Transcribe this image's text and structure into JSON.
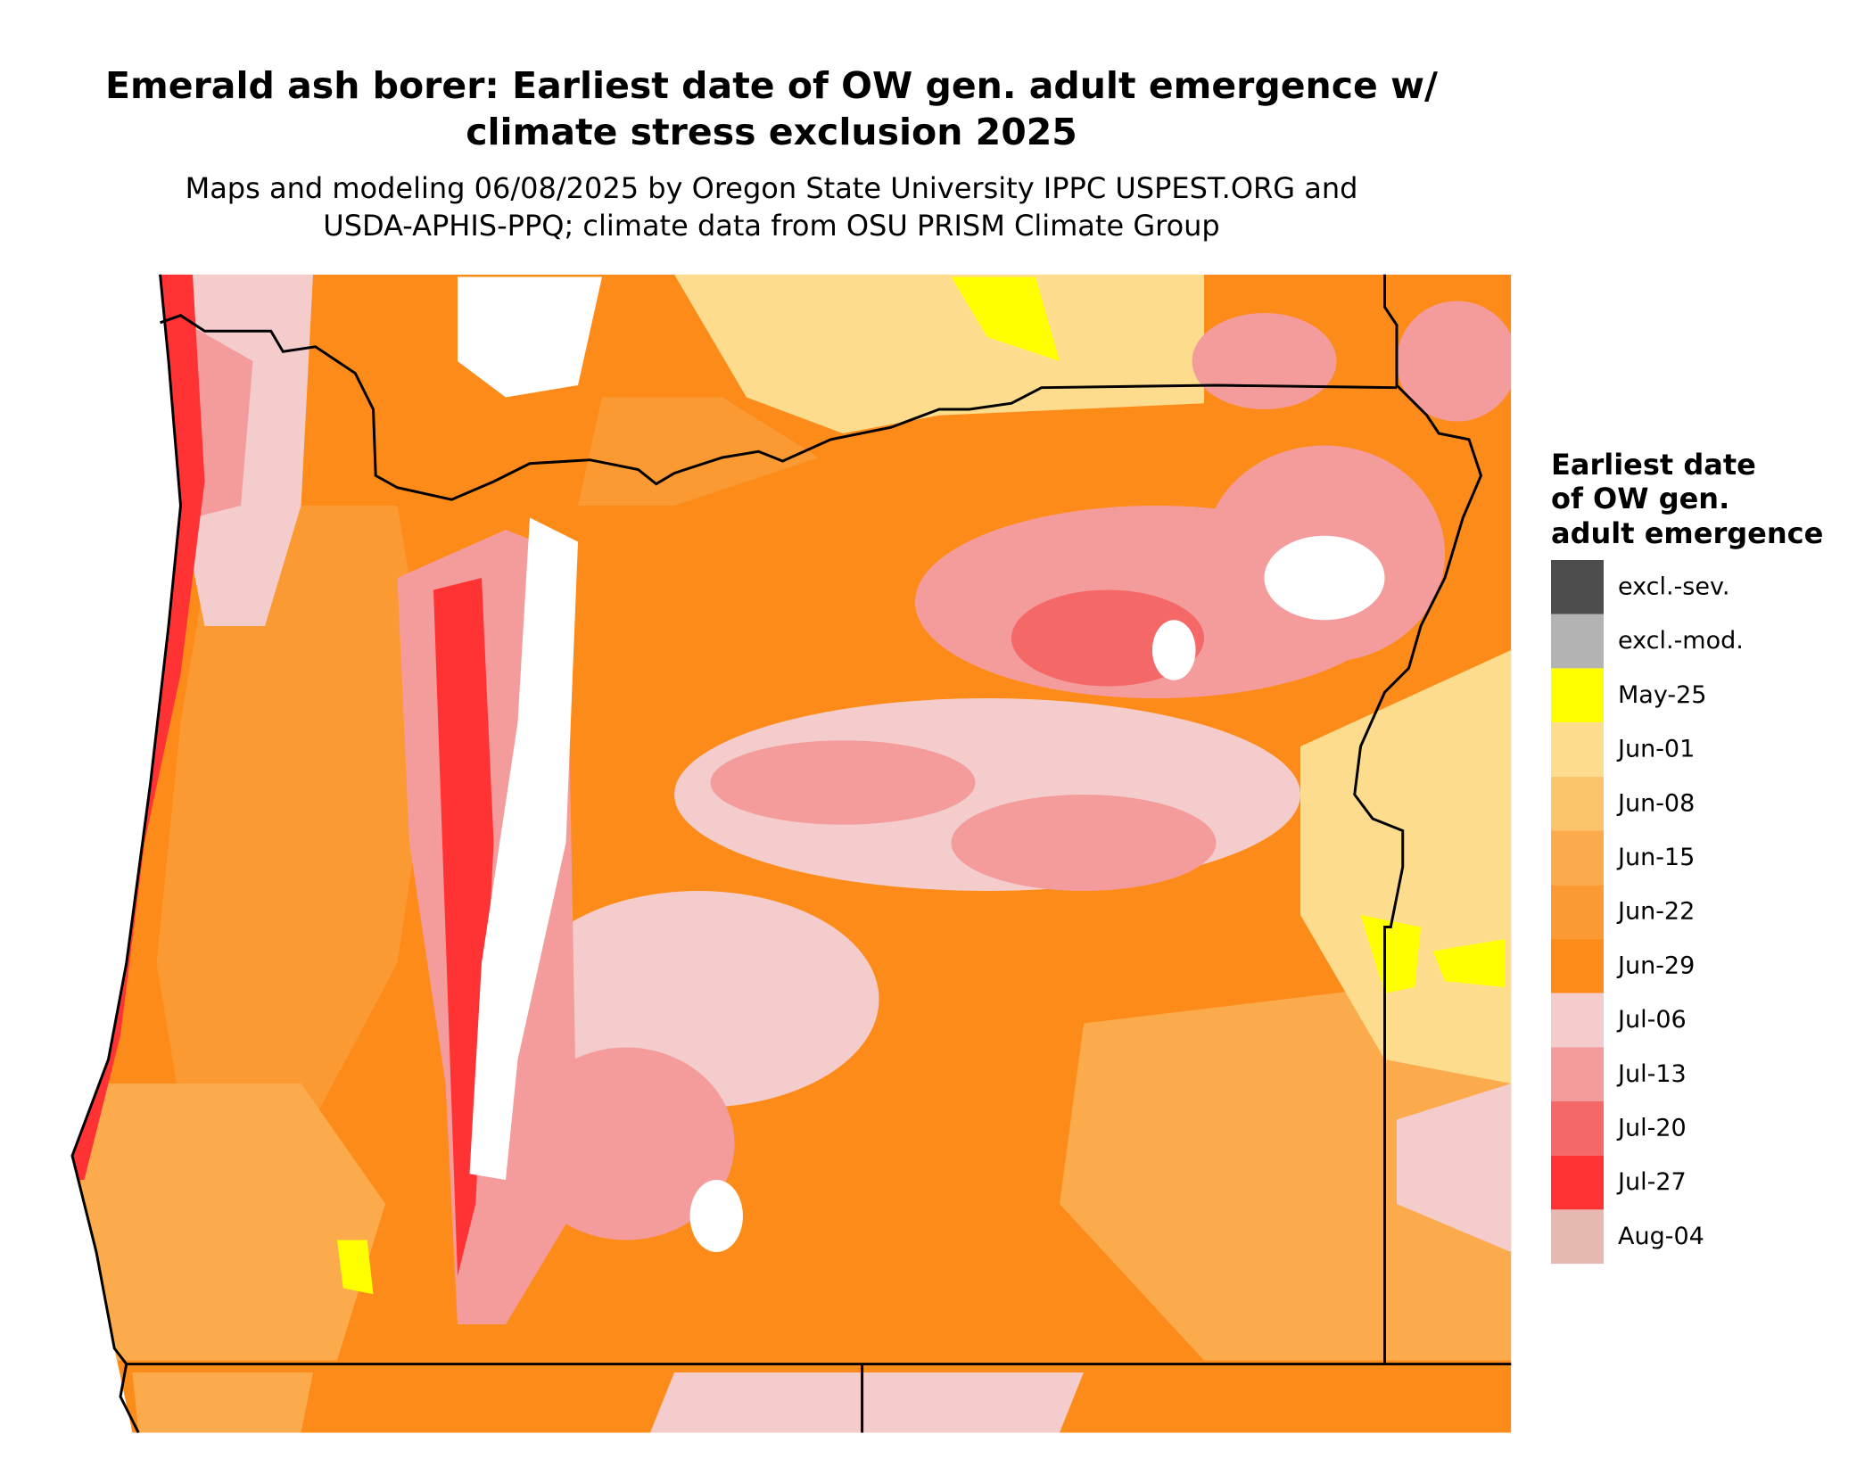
{
  "title": [
    "Emerald ash borer: Earliest date of OW gen. adult emergence w/",
    "climate stress exclusion 2025"
  ],
  "subtitle": [
    "Maps and modeling 06/08/2025 by Oregon State University IPPC USPEST.ORG and",
    "USDA-APHIS-PPQ; climate data from OSU PRISM Climate Group"
  ],
  "legend": {
    "title": [
      "Earliest date",
      "of OW gen.",
      "adult emergence"
    ],
    "items": [
      {
        "label": "excl.-sev.",
        "color": "#4d4d4d"
      },
      {
        "label": "excl.-mod.",
        "color": "#b3b3b3"
      },
      {
        "label": "May-25",
        "color": "#ffff00"
      },
      {
        "label": "Jun-01",
        "color": "#fddc8e"
      },
      {
        "label": "Jun-08",
        "color": "#fcc46c"
      },
      {
        "label": "Jun-15",
        "color": "#fbab4b"
      },
      {
        "label": "Jun-22",
        "color": "#fb9a32"
      },
      {
        "label": "Jun-29",
        "color": "#fd8b1a"
      },
      {
        "label": "Jul-06",
        "color": "#f4cccc"
      },
      {
        "label": "Jul-13",
        "color": "#f49c9c"
      },
      {
        "label": "Jul-20",
        "color": "#f46868"
      },
      {
        "label": "Jul-27",
        "color": "#ff3333"
      },
      {
        "label": "Aug-04",
        "color": "#e6b8af"
      }
    ]
  }
}
